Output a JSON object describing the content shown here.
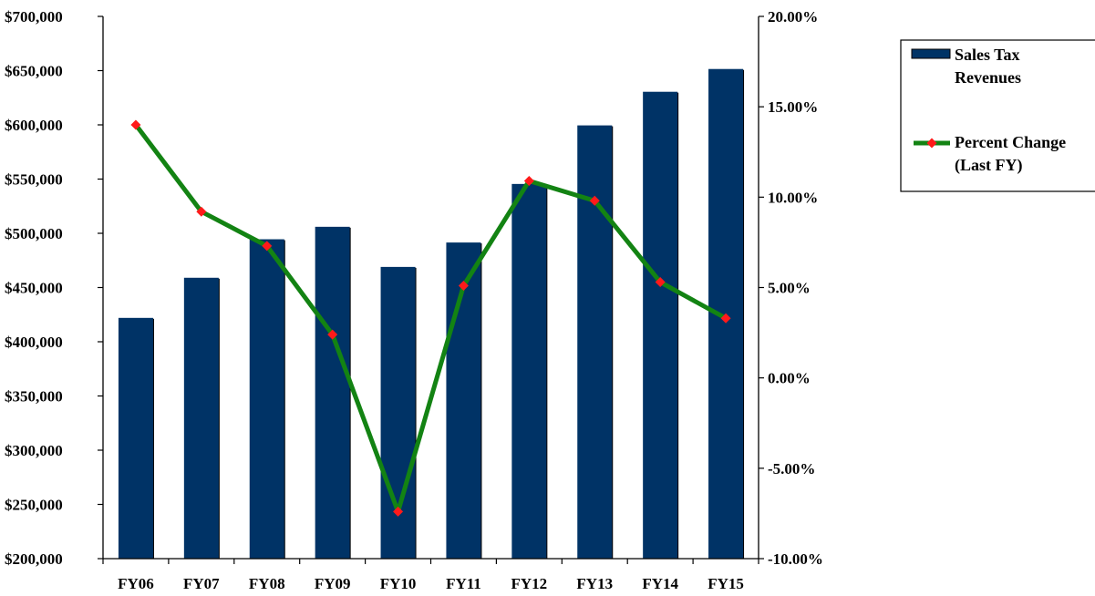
{
  "chart_data": {
    "type": "bar",
    "title": "",
    "xlabel": "",
    "ylabel": "",
    "categories": [
      "FY06",
      "FY07",
      "FY08",
      "FY09",
      "FY10",
      "FY11",
      "FY12",
      "FY13",
      "FY14",
      "FY15"
    ],
    "series": [
      {
        "name": "Sales Tax Revenues",
        "type": "bar",
        "axis": "left",
        "color": "#003366",
        "values": [
          422000,
          459000,
          494500,
          506000,
          469000,
          491500,
          545500,
          599500,
          630500,
          651500
        ]
      },
      {
        "name": "Percent Change (Last FY)",
        "type": "line",
        "axis": "right",
        "color": "#138313",
        "marker_color": "#ff1a1a",
        "values": [
          14.0,
          9.2,
          7.3,
          2.4,
          -7.4,
          5.1,
          10.9,
          9.8,
          5.3,
          3.3
        ]
      }
    ],
    "y_left": {
      "ylim": [
        200000,
        700000
      ],
      "tick_values": [
        200000,
        250000,
        300000,
        350000,
        400000,
        450000,
        500000,
        550000,
        600000,
        650000,
        700000
      ],
      "tick_labels": [
        "$200,000",
        "$250,000",
        "$300,000",
        "$350,000",
        "$400,000",
        "$450,000",
        "$500,000",
        "$550,000",
        "$600,000",
        "$650,000",
        "$700,000"
      ]
    },
    "y_right": {
      "ylim": [
        -10,
        20
      ],
      "tick_values": [
        -10,
        -5,
        0,
        5,
        10,
        15,
        20
      ],
      "tick_labels": [
        "-10.00%",
        "-5.00%",
        "0.00%",
        "5.00%",
        "10.00%",
        "15.00%",
        "20.00%"
      ]
    },
    "grid": false,
    "legend": {
      "placement": "right",
      "entries": [
        {
          "lines": [
            "Sales Tax",
            "Revenues"
          ],
          "kind": "bar"
        },
        {
          "lines": [
            "Percent Change",
            "(Last FY)"
          ],
          "kind": "line"
        }
      ]
    }
  }
}
